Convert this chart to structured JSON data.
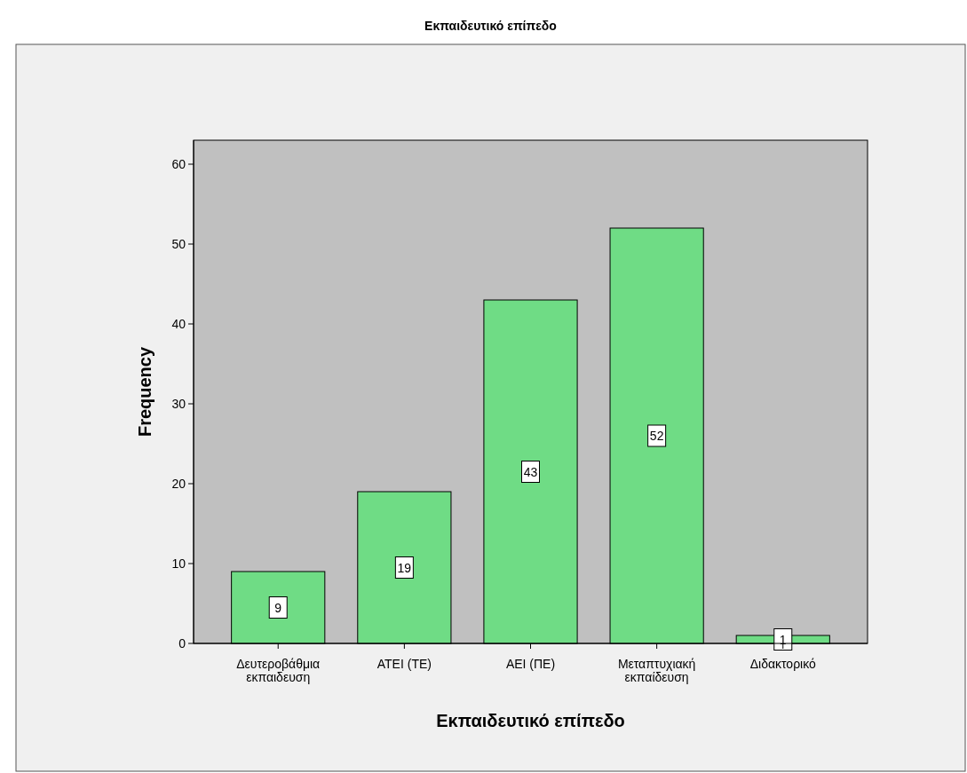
{
  "chart_data": {
    "type": "bar",
    "title": "Εκπαιδευτικό επίπεδο",
    "xlabel": "Εκπαιδευτικό επίπεδο",
    "ylabel": "Frequency",
    "categories": [
      "Δευτεροβάθμια εκπαιδευση",
      "ΑΤΕΙ (ΤΕ)",
      "ΑΕΙ (ΠΕ)",
      "Μεταπτυχιακή εκπαίδευση",
      "Διδακτορικό"
    ],
    "values": [
      9,
      19,
      43,
      52,
      1
    ],
    "color": "#6fdc85",
    "ylim": [
      0,
      63
    ],
    "yticks": [
      0,
      10,
      20,
      30,
      40,
      50,
      60
    ],
    "data_labels": true
  }
}
